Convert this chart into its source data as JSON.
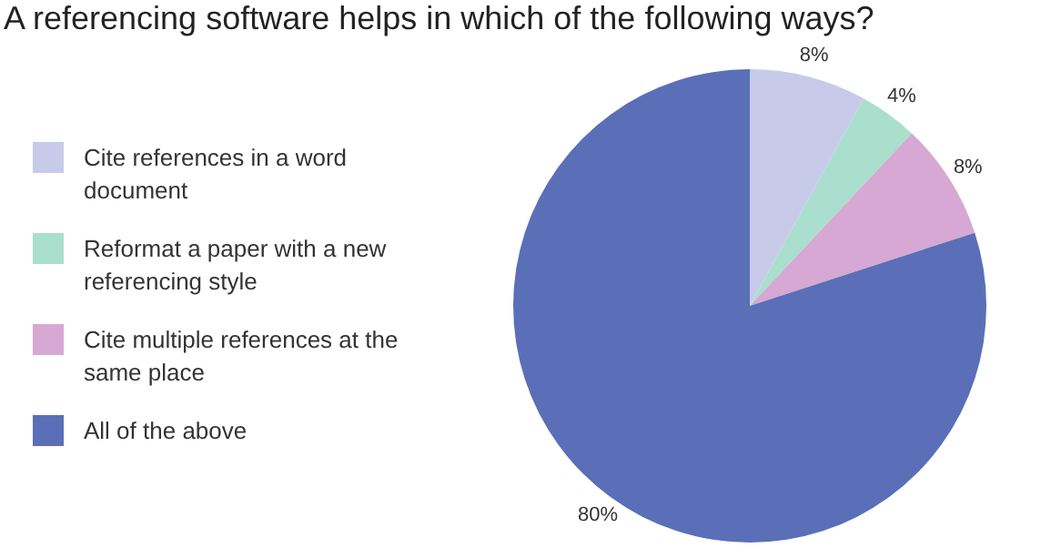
{
  "chart_data": {
    "type": "pie",
    "title": "A referencing software helps in which of the following ways?",
    "categories": [
      "Cite references in a word document",
      "Reformat a paper with a new referencing style",
      "Cite multiple references at the same place",
      "All of the above"
    ],
    "values": [
      8,
      4,
      8,
      80
    ],
    "colors": [
      "#c7cbe9",
      "#a9dfcc",
      "#d6a8d3",
      "#5a6fb8"
    ],
    "value_labels": [
      "8%",
      "4%",
      "8%",
      "80%"
    ],
    "legend": "left"
  }
}
